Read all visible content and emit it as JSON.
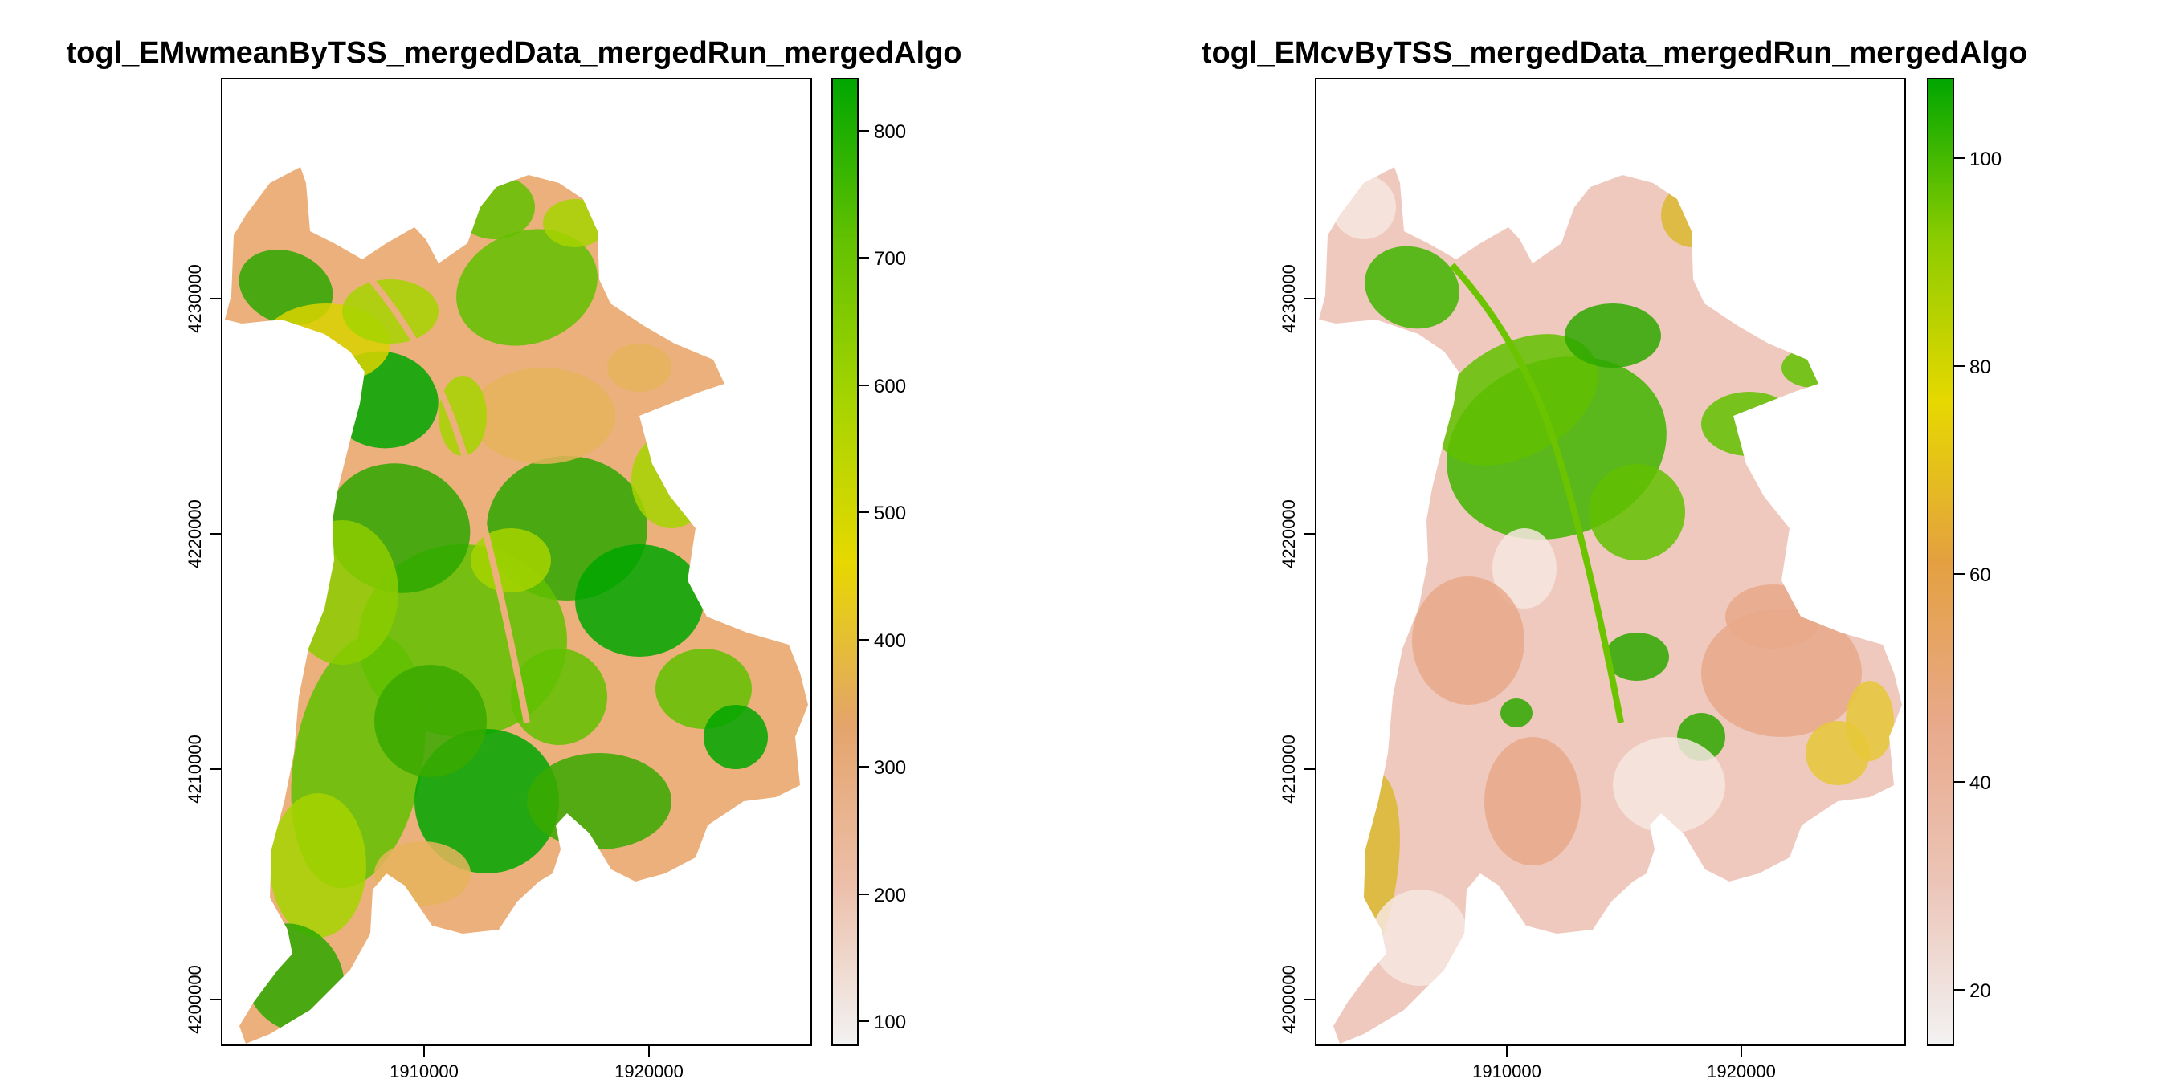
{
  "panels": [
    {
      "title": "togl_EMwmeanByTSS_mergedData_mergedRun_mergedAlgo",
      "x_ticks": [
        "1910000",
        "1920000"
      ],
      "y_ticks": [
        "4230000",
        "4220000",
        "4210000",
        "4200000"
      ],
      "legend_ticks": [
        "800",
        "700",
        "600",
        "500",
        "400",
        "300",
        "200",
        "100"
      ],
      "scale_stops": [
        "#f2f2f2",
        "#ecbfaa",
        "#e4a46a",
        "#e6d800",
        "#a6d400",
        "#62c100",
        "#00a600"
      ],
      "fill_base": "#ecb07c",
      "patch_colors": [
        "#2ea800",
        "#00a600",
        "#62c100",
        "#a6d400",
        "#d9d200",
        "#e6b45c",
        "#39a900",
        "#8ccc00"
      ]
    },
    {
      "title": "togl_EMcvByTSS_mergedData_mergedRun_mergedAlgo",
      "x_ticks": [
        "1910000",
        "1920000"
      ],
      "y_ticks": [
        "4230000",
        "4220000",
        "4210000",
        "4200000"
      ],
      "legend_ticks": [
        "100",
        "80",
        "60",
        "40",
        "20"
      ],
      "scale_stops": [
        "#f2f2f2",
        "#ecc5b8",
        "#e8a98a",
        "#e4a040",
        "#e6d800",
        "#8ccc00",
        "#00a600"
      ],
      "fill_base": "#efc9bd",
      "patch_colors": [
        "#3fb400",
        "#62c100",
        "#2ea800",
        "#e8a98a",
        "#f6e6e1",
        "#d9b830",
        "#e6c838"
      ]
    }
  ]
}
